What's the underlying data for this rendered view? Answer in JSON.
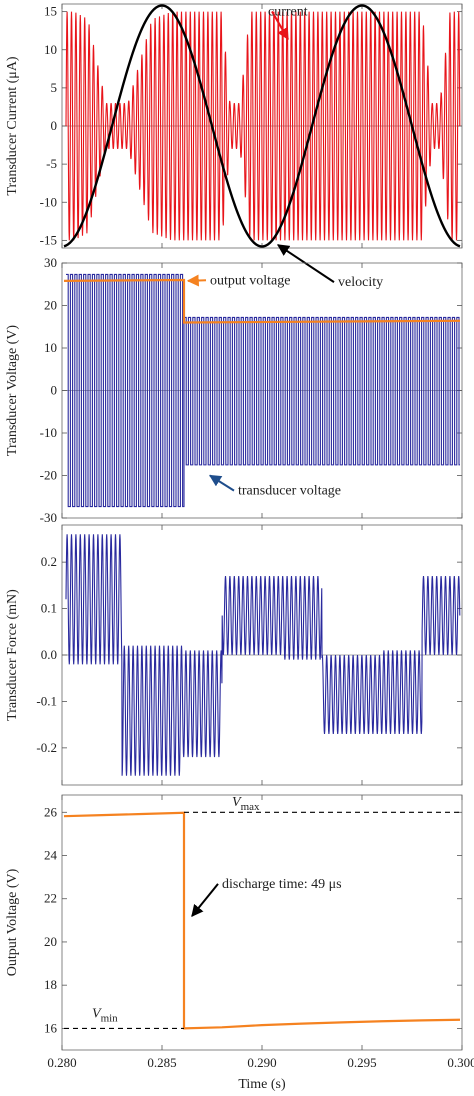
{
  "chart_data": [
    {
      "type": "line",
      "ylabel": "Transducer Current (μA)",
      "xlim": [
        0.28,
        0.3
      ],
      "ylim": [
        -16,
        16
      ],
      "yticks": [
        -15,
        -10,
        -5,
        0,
        5,
        10,
        15
      ],
      "zero_line": true,
      "series": [
        {
          "name": "current",
          "color": "#e8141a",
          "kind": "carrier-oscillation",
          "carrier_period": 0.00022,
          "envelope": {
            "x": [
              0.2802,
              0.2806,
              0.2813,
              0.2822,
              0.2833,
              0.2845,
              0.2855,
              0.286,
              0.2867,
              0.2875,
              0.288,
              0.2884,
              0.2889,
              0.2894,
              0.2898,
              0.2903,
              0.2906,
              0.2911,
              0.2916,
              0.2921,
              0.2925,
              0.2932,
              0.294,
              0.2948,
              0.2955,
              0.296,
              0.2966,
              0.2971,
              0.2976,
              0.298,
              0.2985,
              0.2989,
              0.2994,
              0.2999
            ],
            "lo": [
              -15,
              -15,
              -14,
              -3,
              -3,
              -14,
              -15,
              -15,
              -15,
              -15,
              -15,
              -3,
              -3,
              -15,
              -15,
              -15,
              -15,
              -15,
              -15,
              -15,
              -15,
              -15,
              -15,
              -15,
              -15,
              -15,
              -15,
              -15,
              -15,
              -15,
              -3,
              -3,
              -15,
              -15
            ],
            "hi": [
              15,
              15,
              14,
              3,
              3,
              14,
              15,
              15,
              15,
              15,
              15,
              3,
              3,
              15,
              15,
              15,
              15,
              15,
              15,
              15,
              15,
              15,
              15,
              15,
              15,
              15,
              15,
              15,
              15,
              15,
              3,
              3,
              15,
              15
            ]
          }
        },
        {
          "name": "velocity",
          "color": "#000000",
          "kind": "sinusoid",
          "amplitude": 15.8,
          "period": 0.01,
          "peak_at": 0.285
        }
      ],
      "annotations": [
        {
          "text": "current",
          "at": [
            0.2903,
            14.5
          ],
          "arrow_to": [
            0.2913,
            11.4
          ],
          "color": "#e8141a"
        },
        {
          "text": "velocity",
          "at": [
            0.2938,
            -21.0
          ],
          "arrow_to": [
            0.2908,
            -15.6
          ],
          "color": "#000000"
        }
      ]
    },
    {
      "type": "line",
      "ylabel": "Transducer Voltage (V)",
      "xlim": [
        0.28,
        0.3
      ],
      "ylim": [
        -30,
        30
      ],
      "yticks": [
        -30,
        -20,
        -10,
        0,
        10,
        20,
        30
      ],
      "zero_line": true,
      "series": [
        {
          "name": "transducer voltage",
          "color": "#2a2a9e",
          "kind": "square-wave",
          "segments": [
            {
              "from": 0.2802,
              "to": 0.2861,
              "low": -27.3,
              "high": 27.3,
              "period": 0.00022
            },
            {
              "from": 0.2861,
              "to": 0.2999,
              "low": -17.5,
              "high": 17.2,
              "period": 0.00022
            }
          ]
        },
        {
          "name": "output voltage",
          "color": "#f58220",
          "kind": "step",
          "points": [
            [
              0.2801,
              25.8
            ],
            [
              0.2861,
              26.0
            ],
            [
              0.2861,
              16.0
            ],
            [
              0.2999,
              16.4
            ]
          ]
        }
      ],
      "annotations": [
        {
          "text": "output  voltage",
          "at": [
            0.2874,
            25.0
          ],
          "arrow_to": [
            0.2863,
            25.8
          ],
          "color": "#f58220"
        },
        {
          "text": "transducer  voltage",
          "at": [
            0.2888,
            -24.5
          ],
          "arrow_to": [
            0.2874,
            -20.0
          ],
          "color": "#1f4e8c"
        }
      ]
    },
    {
      "type": "line",
      "ylabel": "Transducer Force (mN)",
      "xlim": [
        0.28,
        0.3
      ],
      "ylim": [
        -0.28,
        0.28
      ],
      "yticks": [
        -0.2,
        -0.1,
        0.0,
        0.1,
        0.2
      ],
      "zero_line": true,
      "series": [
        {
          "name": "force",
          "color": "#2a2a9e",
          "kind": "carrier-oscillation",
          "carrier_period": 0.00022,
          "segments": [
            {
              "from": 0.2802,
              "to": 0.283,
              "low": -0.02,
              "high": 0.26
            },
            {
              "from": 0.283,
              "to": 0.286,
              "low": -0.26,
              "high": 0.02
            },
            {
              "from": 0.286,
              "to": 0.288,
              "low": -0.22,
              "high": 0.01
            },
            {
              "from": 0.288,
              "to": 0.291,
              "low": 0.0,
              "high": 0.17
            },
            {
              "from": 0.291,
              "to": 0.293,
              "low": -0.01,
              "high": 0.17
            },
            {
              "from": 0.293,
              "to": 0.296,
              "low": -0.17,
              "high": 0.0
            },
            {
              "from": 0.296,
              "to": 0.298,
              "low": -0.17,
              "high": 0.01
            },
            {
              "from": 0.298,
              "to": 0.2999,
              "low": 0.0,
              "high": 0.17
            }
          ]
        }
      ]
    },
    {
      "type": "line",
      "ylabel": "Output Voltage (V)",
      "xlabel": "Time (s)",
      "xlim": [
        0.28,
        0.3
      ],
      "ylim": [
        15,
        26.8
      ],
      "yticks": [
        16,
        18,
        20,
        22,
        24,
        26
      ],
      "xticks": [
        "0.280",
        "0.285",
        "0.290",
        "0.295",
        "0.300"
      ],
      "series": [
        {
          "name": "output voltage",
          "color": "#f58220",
          "kind": "polyline",
          "points": [
            [
              0.2801,
              25.82
            ],
            [
              0.282,
              25.87
            ],
            [
              0.284,
              25.92
            ],
            [
              0.2861,
              25.98
            ],
            [
              0.2861,
              16.0
            ],
            [
              0.288,
              16.05
            ],
            [
              0.29,
              16.15
            ],
            [
              0.292,
              16.22
            ],
            [
              0.294,
              16.28
            ],
            [
              0.296,
              16.33
            ],
            [
              0.298,
              16.37
            ],
            [
              0.2999,
              16.4
            ]
          ]
        },
        {
          "name": "V_max",
          "color": "#000000",
          "kind": "dashed",
          "points": [
            [
              0.2861,
              26.0
            ],
            [
              0.2999,
              26.0
            ]
          ]
        },
        {
          "name": "V_min",
          "color": "#000000",
          "kind": "dashed",
          "points": [
            [
              0.2801,
              16.0
            ],
            [
              0.2861,
              16.0
            ]
          ]
        }
      ],
      "annotations": [
        {
          "text": "V",
          "sub": "max",
          "at": [
            0.2885,
            26.3
          ],
          "color": "#000000"
        },
        {
          "text": "V",
          "sub": "min",
          "at": [
            0.2815,
            16.5
          ],
          "color": "#000000"
        },
        {
          "text": "discharge  time: 49 μs",
          "at": [
            0.288,
            22.5
          ],
          "arrow_to": [
            0.2865,
            21.2
          ],
          "color": "#000000"
        }
      ]
    }
  ]
}
